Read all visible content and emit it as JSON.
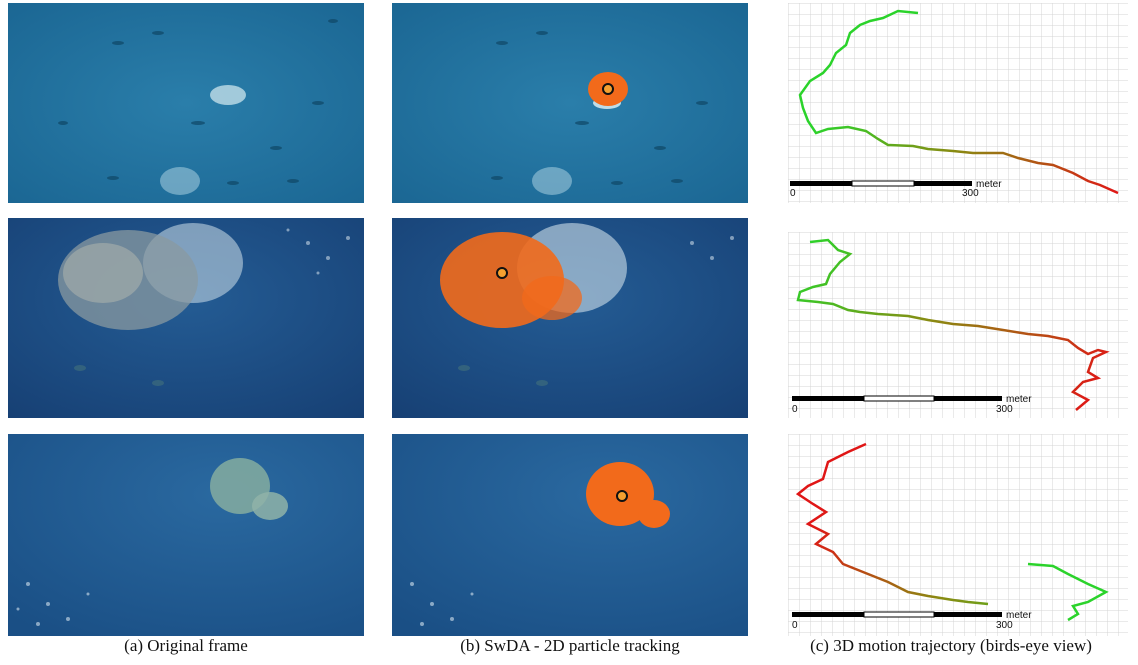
{
  "captions": {
    "col_a": "(a) Original frame",
    "col_b": "(b) SwDA - 2D particle tracking",
    "col_c": "(c) 3D motion trajectory (birds-eye view)"
  },
  "scale_bar": {
    "start_label": "0",
    "end_label": "300",
    "unit_label": "meter"
  },
  "colors": {
    "ocean_row1": "#1f6f9c",
    "ocean_row2": "#1d4f86",
    "ocean_row3": "#1e5d92",
    "particles": "#f26a1b",
    "centroid_fill": "#f4a030",
    "trajectory_start": "#2bd32b",
    "trajectory_end": "#e01616",
    "grid": "#d4d4d4"
  }
}
